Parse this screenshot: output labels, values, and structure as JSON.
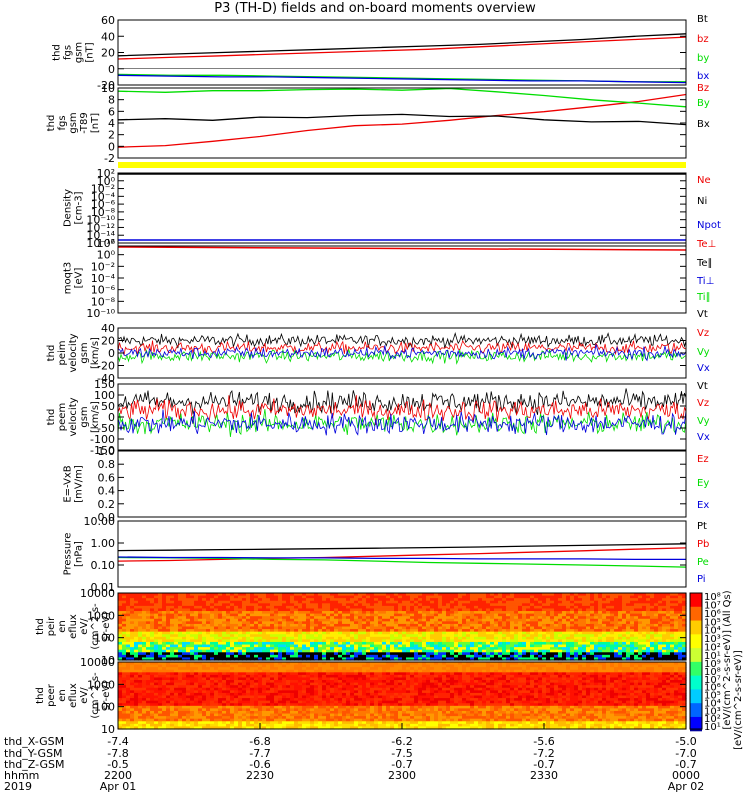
{
  "title": "P3 (TH-D) fields and on-board moments overview",
  "colors": {
    "black": "#000000",
    "red": "#ee0000",
    "green": "#00dd00",
    "blue": "#0000dd",
    "yellow": "#ffff00"
  },
  "chart_data": [
    {
      "id": "fgs",
      "type": "line",
      "ylabel": [
        "thd",
        "fgs",
        "gsm",
        "[nT]"
      ],
      "yticks": [
        "60",
        "40",
        "20",
        "0",
        "-20"
      ],
      "ylim": [
        -20,
        60
      ],
      "series": [
        {
          "name": "Bt",
          "color": "#000000",
          "values": [
            16,
            18,
            20,
            22,
            24,
            26,
            28,
            30,
            33,
            36,
            40,
            43
          ]
        },
        {
          "name": "bz",
          "color": "#ee0000",
          "values": [
            12,
            14,
            16,
            18,
            20,
            22,
            24,
            27,
            30,
            33,
            36,
            39
          ]
        },
        {
          "name": "by",
          "color": "#00dd00",
          "values": [
            -7,
            -8,
            -8,
            -9,
            -10,
            -11,
            -12,
            -13,
            -14,
            -15,
            -16,
            -16
          ]
        },
        {
          "name": "bx",
          "color": "#0000dd",
          "values": [
            -8,
            -9,
            -10,
            -10,
            -11,
            -12,
            -13,
            -14,
            -15,
            -15,
            -16,
            -17
          ]
        }
      ]
    },
    {
      "id": "fgs-t89",
      "type": "line",
      "ylabel": [
        "thd",
        "fgs",
        "gsm",
        "-T89",
        "[nT]"
      ],
      "yticks": [
        "10",
        "8",
        "6",
        "4",
        "2",
        "0",
        "-2"
      ],
      "ylim": [
        -3,
        10
      ],
      "series": [
        {
          "name": "Bz",
          "color": "#ee0000",
          "values": [
            -1,
            -0.7,
            0.1,
            1,
            2.1,
            3,
            3.3,
            4,
            4.9,
            5.6,
            6.5,
            7.5,
            8.8
          ]
        },
        {
          "name": "By",
          "color": "#00dd00",
          "values": [
            9.4,
            9.2,
            9.5,
            9.5,
            9.7,
            9.8,
            9.6,
            9.9,
            9.3,
            8.6,
            7.8,
            7.2,
            6.5
          ]
        },
        {
          "name": "Bx",
          "color": "#000000",
          "values": [
            4.1,
            4.3,
            4,
            4.6,
            4.5,
            4.9,
            5.1,
            4.7,
            4.8,
            4.1,
            3.7,
            3.8,
            3.2
          ]
        }
      ]
    },
    {
      "id": "density",
      "type": "line",
      "ylabel": [
        "Density",
        "[cm-3]"
      ],
      "yticks": [
        "10²",
        "10⁰",
        "10⁻²",
        "10⁻⁴",
        "10⁻⁶",
        "10⁻⁸",
        "10⁻¹⁰",
        "10⁻¹²",
        "10⁻¹⁴",
        "10⁻¹⁶"
      ],
      "series": [
        {
          "name": "Ne",
          "color": "#ee0000"
        },
        {
          "name": "Ni",
          "color": "#000000"
        },
        {
          "name": "Npot",
          "color": "#0000dd"
        }
      ]
    },
    {
      "id": "temperature",
      "type": "line",
      "ylabel": [
        "moqt3",
        "[eV]"
      ],
      "yticks": [
        "10²",
        "10⁰",
        "10⁻²",
        "10⁻⁴",
        "10⁻⁶",
        "10⁻⁸",
        "10⁻¹⁰"
      ],
      "series": [
        {
          "name": "Te⊥",
          "color": "#ee0000"
        },
        {
          "name": "Te∥",
          "color": "#000000"
        },
        {
          "name": "Ti⊥",
          "color": "#0000dd"
        },
        {
          "name": "Ti∥",
          "color": "#00dd00"
        }
      ]
    },
    {
      "id": "peim",
      "type": "line",
      "ylabel": [
        "thd",
        "peim",
        "velocity",
        "gsm",
        "[km/s]"
      ],
      "yticks": [
        "40",
        "20",
        "0",
        "-20",
        "-40"
      ],
      "ylim": [
        -40,
        40
      ],
      "series": [
        {
          "name": "Vt",
          "color": "#000000",
          "mean": 20
        },
        {
          "name": "Vz",
          "color": "#ee0000",
          "mean": 8
        },
        {
          "name": "Vy",
          "color": "#00dd00",
          "mean": -5
        },
        {
          "name": "Vx",
          "color": "#0000dd",
          "mean": 0
        }
      ]
    },
    {
      "id": "peem",
      "type": "line",
      "ylabel": [
        "thd",
        "peem",
        "velocity",
        "gsm",
        "[km/s]"
      ],
      "yticks": [
        "150",
        "100",
        "50",
        "0",
        "-50",
        "-100",
        "-150"
      ],
      "ylim": [
        -150,
        150
      ],
      "series": [
        {
          "name": "Vt",
          "color": "#000000",
          "mean": 70
        },
        {
          "name": "Vz",
          "color": "#ee0000",
          "mean": 30
        },
        {
          "name": "Vy",
          "color": "#00dd00",
          "mean": -30
        },
        {
          "name": "Vx",
          "color": "#0000dd",
          "mean": -30
        }
      ]
    },
    {
      "id": "efield",
      "type": "line",
      "ylabel": [
        "E=-VxB",
        "[mV/m]"
      ],
      "yticks": [
        "1.0",
        "0.8",
        "0.6",
        "0.4",
        "0.2",
        "0.0"
      ],
      "ylim": [
        0,
        1
      ],
      "series": [
        {
          "name": "Ez",
          "color": "#ee0000"
        },
        {
          "name": "Ey",
          "color": "#00dd00"
        },
        {
          "name": "Ex",
          "color": "#0000dd"
        }
      ]
    },
    {
      "id": "pressure",
      "type": "line",
      "ylabel": [
        "Pressure",
        "[nPa]"
      ],
      "yticks": [
        "10.00",
        "1.00",
        "0.10",
        "0.01"
      ],
      "log": true,
      "ylim": [
        0.01,
        10
      ],
      "series": [
        {
          "name": "Pt",
          "color": "#000000",
          "values": [
            0.45,
            0.47,
            0.5,
            0.52,
            0.55,
            0.58,
            0.62,
            0.66,
            0.72,
            0.78,
            0.85,
            0.92
          ]
        },
        {
          "name": "Pb",
          "color": "#ee0000",
          "values": [
            0.15,
            0.16,
            0.18,
            0.2,
            0.22,
            0.25,
            0.29,
            0.33,
            0.38,
            0.44,
            0.52,
            0.6
          ]
        },
        {
          "name": "Pe",
          "color": "#00dd00",
          "values": [
            0.22,
            0.21,
            0.2,
            0.18,
            0.17,
            0.15,
            0.13,
            0.12,
            0.11,
            0.1,
            0.09,
            0.08
          ]
        },
        {
          "name": "Pi",
          "color": "#0000dd",
          "values": [
            0.23,
            0.22,
            0.22,
            0.21,
            0.21,
            0.2,
            0.2,
            0.19,
            0.19,
            0.19,
            0.18,
            0.18
          ]
        }
      ]
    },
    {
      "id": "peir",
      "type": "heatmap",
      "ylabel": [
        "thd",
        "peir",
        "en",
        "eflux",
        "eV/",
        "(cm^2-s-",
        "sr-eV)"
      ],
      "yticks": [
        "10000",
        "1000",
        "100",
        "10"
      ],
      "log": true,
      "ylim": [
        5,
        30000
      ]
    },
    {
      "id": "peer",
      "type": "heatmap",
      "ylabel": [
        "thd",
        "peer",
        "en",
        "eflux",
        "eV/",
        "(cm^2-s-",
        "sr-eV)"
      ],
      "yticks": [
        "10000",
        "1000",
        "100",
        "10"
      ],
      "log": true,
      "ylim": [
        5,
        30000
      ]
    }
  ],
  "colorbar": {
    "label1": "[eV/(cm^2-s-sr-eV)] (All Qs)",
    "label2": "[eV/(cm^2-s-sr-eV)]",
    "ticks1": [
      "10⁸",
      "10⁷",
      "10⁶",
      "10⁵",
      "10⁴",
      "10³",
      "10²",
      "10¹"
    ],
    "ticks2": [
      "10⁹",
      "10⁸",
      "10⁷",
      "10⁶",
      "10⁵",
      "10⁴",
      "10³",
      "10²",
      "10¹"
    ]
  },
  "xaxis": {
    "rows": [
      {
        "label": "thd_X-GSM",
        "values": [
          "-7.4",
          "-6.8",
          "-6.2",
          "-5.6",
          "-5.0"
        ]
      },
      {
        "label": "thd_Y-GSM",
        "values": [
          "-7.8",
          "-7.7",
          "-7.5",
          "-7.2",
          "-7.0"
        ]
      },
      {
        "label": "thd_Z-GSM",
        "values": [
          "-0.5",
          "-0.6",
          "-0.7",
          "-0.7",
          "-0.7"
        ]
      },
      {
        "label": "hhmm",
        "values": [
          "2200",
          "2230",
          "2300",
          "2330",
          "0000"
        ]
      },
      {
        "label": "2019",
        "values": [
          "Apr 01",
          "",
          "",
          "",
          "Apr 02"
        ]
      }
    ]
  }
}
